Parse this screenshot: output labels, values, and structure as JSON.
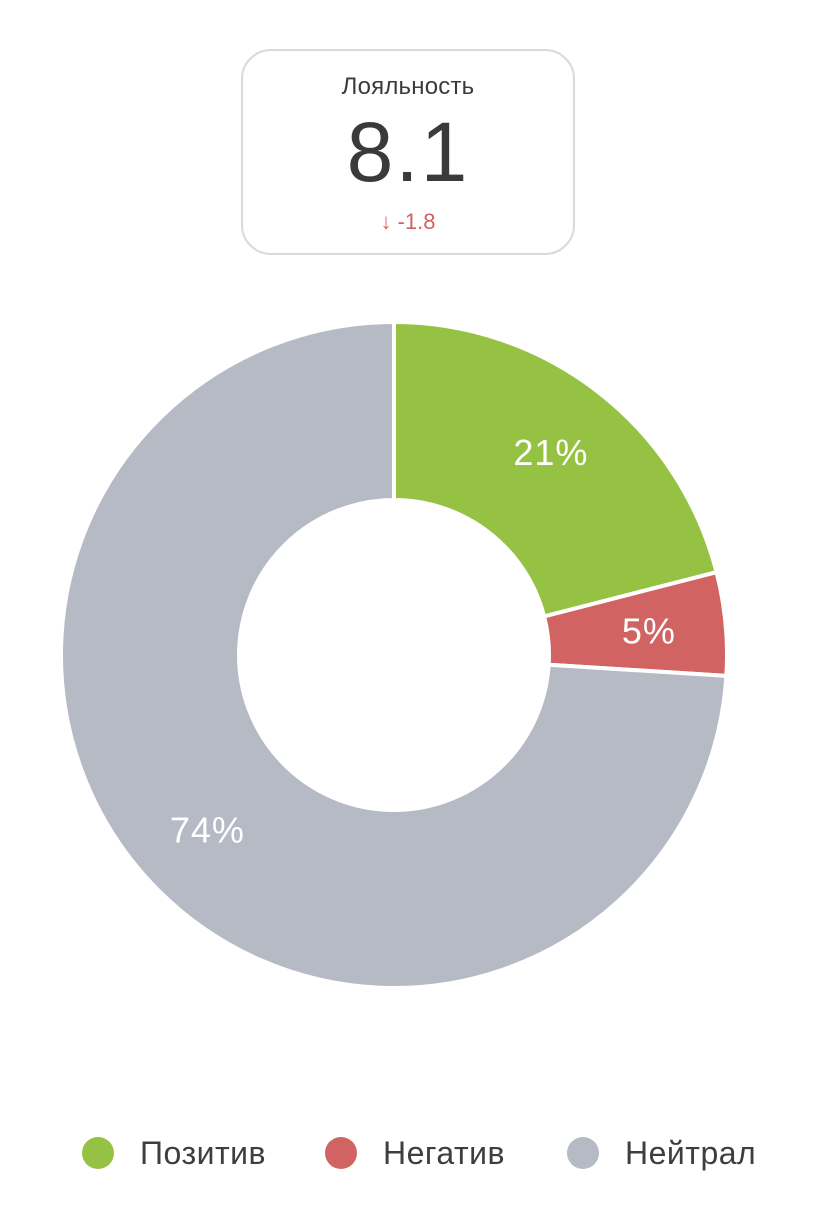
{
  "kpi": {
    "label": "Лояльность",
    "value": "8.1",
    "delta_arrow": "↓",
    "delta": "-1.8",
    "delta_color": "#d2625f"
  },
  "chart_data": {
    "type": "pie",
    "variant": "donut",
    "series": [
      {
        "name": "Позитив",
        "value": 21,
        "label": "21%",
        "color": "#95c242"
      },
      {
        "name": "Негатив",
        "value": 5,
        "label": "5%",
        "color": "#d16462"
      },
      {
        "name": "Нейтрал",
        "value": 74,
        "label": "74%",
        "color": "#b6bac4"
      }
    ],
    "legend_position": "bottom"
  }
}
